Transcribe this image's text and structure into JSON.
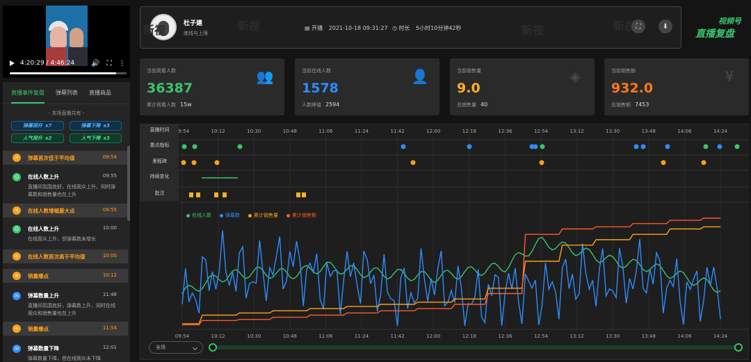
{
  "video": {
    "time": "4:20:29 / 4:46:24",
    "progress": 0.91
  },
  "left_tabs": [
    {
      "label": "直播事件复盘",
      "active": true
    },
    {
      "label": "弹幕列表",
      "active": false
    },
    {
      "label": "直播商品",
      "active": false
    }
  ],
  "summary": {
    "title": "- 本场直播共有 -",
    "tags": [
      {
        "label": "弹幕探升",
        "count": "x7",
        "color": "blue"
      },
      {
        "label": "弹幕下降",
        "count": "x3",
        "color": "blue"
      },
      {
        "label": "人气探升",
        "count": "x2",
        "color": "green"
      },
      {
        "label": "人气下降",
        "count": "x3",
        "color": "green"
      }
    ]
  },
  "events": [
    {
      "title": "弹幕首次低于平均值",
      "time": "09:54",
      "highlight": true,
      "icon": "bulb-icon",
      "color": "#ff9f1a",
      "desc": ""
    },
    {
      "title": "在线人数上升",
      "time": "09:55",
      "highlight": false,
      "icon": "user-icon",
      "color": "#3ac46f",
      "desc": "直播间氛围良好，在线观众上升，同时弹幕数和销售量也在上升"
    },
    {
      "title": "在线人数增幅最大点",
      "time": "09:55",
      "highlight": true,
      "icon": "bulb-icon",
      "color": "#ff9f1a",
      "desc": ""
    },
    {
      "title": "在线人数上升",
      "time": "10:00",
      "highlight": false,
      "icon": "user-icon",
      "color": "#3ac46f",
      "desc": "在线观众上升，但弹幕数未增长"
    },
    {
      "title": "在线人数首次高于平均值",
      "time": "10:00",
      "highlight": true,
      "icon": "bulb-icon",
      "color": "#ff9f1a",
      "desc": ""
    },
    {
      "title": "销量爆点",
      "time": "10:12",
      "highlight": true,
      "icon": "bulb-icon",
      "color": "#ff9f1a",
      "desc": ""
    },
    {
      "title": "弹幕数量上升",
      "time": "11:48",
      "highlight": false,
      "icon": "chat-icon",
      "color": "#2f8cff",
      "desc": "直播间氛围良好，弹幕数上升，同时在线观众和销售量也在上升"
    },
    {
      "title": "销量爆点",
      "time": "11:54",
      "highlight": true,
      "icon": "bulb-icon",
      "color": "#ff9f1a",
      "desc": ""
    },
    {
      "title": "弹幕数量下降",
      "time": "12:01",
      "highlight": false,
      "icon": "chat-icon",
      "color": "#2f8cff",
      "desc": "弹幕数量下降，但在线观众未下降"
    }
  ],
  "header": {
    "host_name": "杜子建",
    "host_sub": "底线与上限",
    "start_label": "开播",
    "start_time": "2021-10-18 09:31:27",
    "duration_label": "时长",
    "duration": "5小时10分钟42秒",
    "watermark": "新视",
    "logo_line1": "视频号",
    "logo_line2": "直播复盘"
  },
  "cards": [
    {
      "label": "当前观看人数",
      "value": "36387",
      "color": "#3ac46f",
      "sub_label": "累计观看人数",
      "sub_value": "15w",
      "icon": "users-icon"
    },
    {
      "label": "当前在线人数",
      "value": "1578",
      "color": "#2f8cff",
      "sub_label": "人数峰值",
      "sub_value": "2594",
      "icon": "user-icon"
    },
    {
      "label": "当前销售量",
      "value": "9.0",
      "color": "#ffb020",
      "sub_label": "总销售量",
      "sub_value": "40",
      "icon": "layers-icon"
    },
    {
      "label": "当前销售额",
      "value": "932.0",
      "color": "#ff7a1a",
      "sub_label": "总销售额",
      "sub_value": "7453",
      "icon": "yen-icon"
    }
  ],
  "timeline": {
    "row_labels": [
      "直播时间",
      "重点指标",
      "里程碑",
      "持续变化",
      "批注"
    ],
    "ticks": [
      "09:54",
      "10:12",
      "10:30",
      "10:48",
      "11:06",
      "11:24",
      "11:42",
      "12:00",
      "12:18",
      "12:36",
      "12:54",
      "13:12",
      "13:30",
      "13:48",
      "14:06",
      "14:24"
    ],
    "range_label": "全场"
  },
  "chart_data": {
    "type": "line",
    "x": [
      "09:54",
      "10:12",
      "10:30",
      "10:48",
      "11:06",
      "11:24",
      "11:42",
      "12:00",
      "12:18",
      "12:36",
      "12:54",
      "13:12",
      "13:30",
      "13:48",
      "14:06",
      "14:24"
    ],
    "series": [
      {
        "name": "在线人数",
        "color": "#3ac46f",
        "values": [
          0.3,
          0.45,
          0.5,
          0.48,
          0.55,
          0.5,
          0.48,
          0.45,
          0.5,
          0.55,
          0.78,
          0.7,
          0.6,
          0.55,
          0.45,
          0.35
        ]
      },
      {
        "name": "弹幕数",
        "color": "#2f8cff",
        "values": [
          0.2,
          0.55,
          0.45,
          0.6,
          0.4,
          0.5,
          0.25,
          0.45,
          0.2,
          0.35,
          0.3,
          0.45,
          0.4,
          0.5,
          0.3,
          0.4
        ]
      },
      {
        "name": "累计销售量",
        "color": "#ff9f1a",
        "values": [
          0.02,
          0.1,
          0.12,
          0.14,
          0.16,
          0.18,
          0.2,
          0.22,
          0.25,
          0.35,
          0.6,
          0.75,
          0.8,
          0.85,
          0.9,
          0.92
        ]
      },
      {
        "name": "累计销售额",
        "color": "#ff5a28",
        "values": [
          0.01,
          0.05,
          0.06,
          0.08,
          0.1,
          0.12,
          0.14,
          0.16,
          0.2,
          0.3,
          0.85,
          0.9,
          0.92,
          0.95,
          0.98,
          1.0
        ]
      }
    ]
  }
}
